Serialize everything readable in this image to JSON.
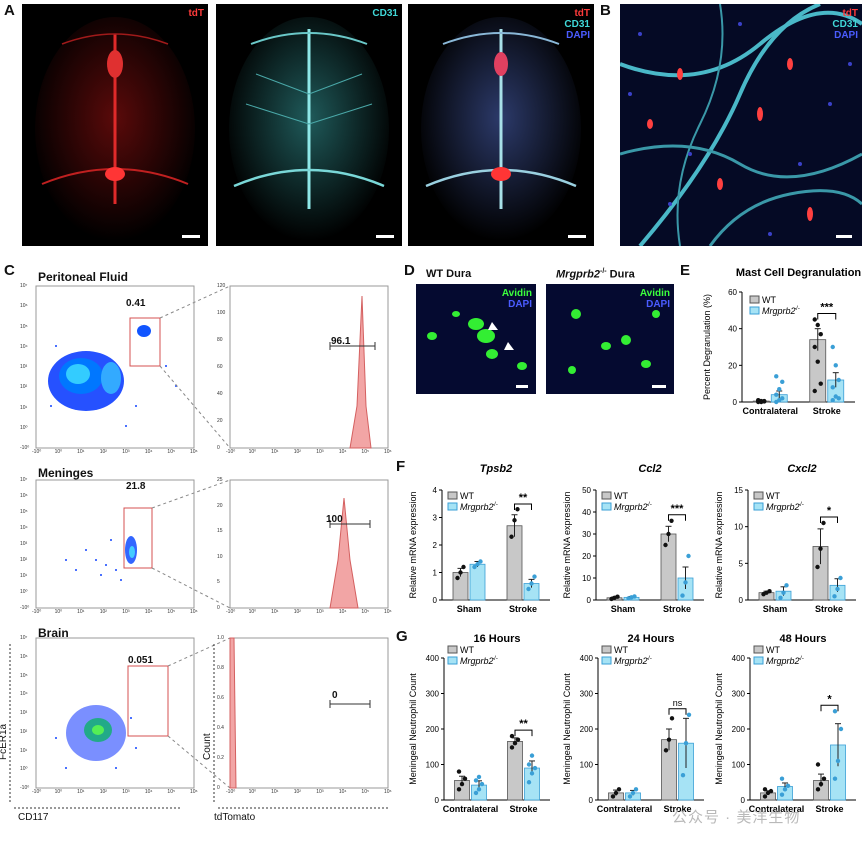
{
  "panels": {
    "a": "A",
    "b": "B",
    "c": "C",
    "d": "D",
    "e": "E",
    "f": "F",
    "g": "G"
  },
  "colors": {
    "tdt": "#ff3b3b",
    "cd31": "#40d8d8",
    "dapi": "#4a5cff",
    "avidin": "#3cff3c",
    "wt_bar": "#c8c8c8",
    "ko_bar": "#a6e3f5",
    "ko_point": "#3a9fd6",
    "hist": "#f2a5a5"
  },
  "panel_a": {
    "img1": [
      "tdT"
    ],
    "img2": [
      "CD31"
    ],
    "img3": [
      "tdT",
      "CD31",
      "DAPI"
    ]
  },
  "panel_b": {
    "labels": [
      "tdT",
      "CD31",
      "DAPI"
    ]
  },
  "panel_c": {
    "rows": [
      {
        "title": "Peritoneal Fluid",
        "gate": "0.41",
        "hist_value": "96.1"
      },
      {
        "title": "Meninges",
        "gate": "21.8",
        "hist_value": "100"
      },
      {
        "title": "Brain",
        "gate": "0.051",
        "hist_value": "0"
      }
    ],
    "scatter_yticks": [
      "10⁷",
      "10⁶",
      "10⁵",
      "10⁴",
      "10³",
      "10²",
      "10¹",
      "10⁰",
      "-10⁰"
    ],
    "scatter_xticks": [
      "-10⁰",
      "10⁰",
      "10¹",
      "10²",
      "10³",
      "10⁴",
      "10⁵",
      "10⁶"
    ],
    "hist_yticks_1": [
      "120",
      "100",
      "80",
      "60",
      "40",
      "20",
      "0"
    ],
    "hist_yticks_2": [
      "25",
      "20",
      "15",
      "10",
      "5",
      "0"
    ],
    "hist_yticks_3": [
      "1.0",
      "0.8",
      "0.6",
      "0.4",
      "0.2",
      "0"
    ],
    "hist_xticks": [
      "-10⁰",
      "10⁰",
      "10¹",
      "10²",
      "10³",
      "10⁴",
      "10⁵",
      "10⁶"
    ],
    "y_axis_label": "FcER1a",
    "x_axis_label": "CD117",
    "hist_y_label": "Count",
    "hist_x_label": "tdTomato"
  },
  "panel_d": {
    "wt_title": "WT Dura",
    "ko_title_gene": "Mrgprb2",
    "ko_title_sup": "-/-",
    "ko_title_suffix": " Dura",
    "labels": [
      "Avidin",
      "DAPI"
    ]
  },
  "legend": {
    "wt": "WT",
    "ko_gene": "Mrgprb2",
    "ko_sup": "-/-"
  },
  "chart_data": [
    {
      "id": "E",
      "type": "bar",
      "title": "Mast Cell Degranulation",
      "ylabel": "Percent Degranulation (%)",
      "ylim": [
        0,
        60
      ],
      "yticks": [
        0,
        20,
        40,
        60
      ],
      "categories": [
        "Contralateral",
        "Stroke"
      ],
      "series": [
        {
          "name": "WT",
          "values": [
            0.5,
            34
          ],
          "err": [
            0.3,
            6
          ],
          "points": [
            [
              0,
              0,
              0.5,
              1,
              0.5,
              0.3,
              0.8
            ],
            [
              45,
              42,
              37,
              30,
              22,
              10,
              6
            ]
          ]
        },
        {
          "name": "Mrgprb2-/-",
          "values": [
            4,
            12
          ],
          "err": [
            2,
            4
          ],
          "points": [
            [
              0,
              1,
              2,
              4,
              7,
              11,
              14
            ],
            [
              30,
              20,
              12,
              8,
              3,
              2,
              1
            ]
          ]
        }
      ],
      "sig": [
        {
          "cat": 1,
          "text": "***"
        }
      ]
    },
    {
      "id": "F1",
      "type": "bar",
      "title": "Tpsb2",
      "title_italic": true,
      "ylabel": "Relative mRNA expression",
      "ylim": [
        0,
        4
      ],
      "yticks": [
        0,
        1,
        2,
        3,
        4
      ],
      "categories": [
        "Sham",
        "Stroke"
      ],
      "series": [
        {
          "name": "WT",
          "values": [
            1.0,
            2.7
          ],
          "err": [
            0.15,
            0.4
          ],
          "points": [
            [
              0.8,
              1.0,
              1.2
            ],
            [
              2.3,
              2.9,
              3.3
            ]
          ]
        },
        {
          "name": "Mrgprb2-/-",
          "values": [
            1.3,
            0.6
          ],
          "err": [
            0.1,
            0.15
          ],
          "points": [
            [
              1.2,
              1.3,
              1.4
            ],
            [
              0.4,
              0.6,
              0.85
            ]
          ]
        }
      ],
      "sig": [
        {
          "cat": 1,
          "text": "**"
        }
      ]
    },
    {
      "id": "F2",
      "type": "bar",
      "title": "Ccl2",
      "title_italic": true,
      "ylabel": "Relative mRNA expression",
      "ylim": [
        0,
        50
      ],
      "yticks": [
        0,
        10,
        20,
        30,
        40,
        50
      ],
      "categories": [
        "Sham",
        "Stroke"
      ],
      "series": [
        {
          "name": "WT",
          "values": [
            1,
            30
          ],
          "err": [
            0.4,
            3.5
          ],
          "points": [
            [
              0.5,
              1,
              1.5
            ],
            [
              25,
              30,
              36
            ]
          ]
        },
        {
          "name": "Mrgprb2-/-",
          "values": [
            1.2,
            10
          ],
          "err": [
            0.4,
            5
          ],
          "points": [
            [
              0.7,
              1.2,
              1.6
            ],
            [
              2,
              8,
              20
            ]
          ]
        }
      ],
      "sig": [
        {
          "cat": 1,
          "text": "***"
        }
      ]
    },
    {
      "id": "F3",
      "type": "bar",
      "title": "Cxcl2",
      "title_italic": true,
      "ylabel": "Relative mRNA expression",
      "ylim": [
        0,
        15
      ],
      "yticks": [
        0,
        5,
        10,
        15
      ],
      "categories": [
        "Sham",
        "Stroke"
      ],
      "series": [
        {
          "name": "WT",
          "values": [
            1,
            7.3
          ],
          "err": [
            0.2,
            2.4
          ],
          "points": [
            [
              0.8,
              1,
              1.2
            ],
            [
              4.5,
              7,
              10.5
            ]
          ]
        },
        {
          "name": "Mrgprb2-/-",
          "values": [
            1.2,
            2
          ],
          "err": [
            0.6,
            0.9
          ],
          "points": [
            [
              0.3,
              1,
              2
            ],
            [
              0.5,
              1.5,
              3
            ]
          ]
        }
      ],
      "sig": [
        {
          "cat": 1,
          "text": "*"
        }
      ]
    },
    {
      "id": "G1",
      "type": "bar",
      "title": "16 Hours",
      "ylabel": "Meningeal Neutrophil Count",
      "ylim": [
        0,
        400
      ],
      "yticks": [
        0,
        100,
        200,
        300,
        400
      ],
      "categories": [
        "Contralateral",
        "Stroke"
      ],
      "series": [
        {
          "name": "WT",
          "values": [
            55,
            165
          ],
          "err": [
            12,
            10
          ],
          "points": [
            [
              30,
              45,
              60,
              80
            ],
            [
              148,
              160,
              170,
              180
            ]
          ]
        },
        {
          "name": "Mrgprb2-/-",
          "values": [
            42,
            90
          ],
          "err": [
            12,
            20
          ],
          "points": [
            [
              20,
              30,
              45,
              55,
              65
            ],
            [
              50,
              75,
              90,
              100,
              125
            ]
          ]
        }
      ],
      "sig": [
        {
          "cat": 1,
          "text": "**"
        }
      ]
    },
    {
      "id": "G2",
      "type": "bar",
      "title": "24 Hours",
      "ylabel": "Meningeal Neutrophil Count",
      "ylim": [
        0,
        400
      ],
      "yticks": [
        0,
        100,
        200,
        300,
        400
      ],
      "categories": [
        "Contralateral",
        "Stroke"
      ],
      "series": [
        {
          "name": "WT",
          "values": [
            20,
            170
          ],
          "err": [
            8,
            30
          ],
          "points": [
            [
              10,
              20,
              30
            ],
            [
              140,
              170,
              230
            ]
          ]
        },
        {
          "name": "Mrgprb2-/-",
          "values": [
            20,
            160
          ],
          "err": [
            7,
            70
          ],
          "points": [
            [
              10,
              20,
              30
            ],
            [
              70,
              160,
              240
            ]
          ]
        }
      ],
      "sig": [
        {
          "cat": 1,
          "text": "ns"
        }
      ]
    },
    {
      "id": "G3",
      "type": "bar",
      "title": "48 Hours",
      "ylabel": "Meningeal Neutrophil Count",
      "ylim": [
        0,
        400
      ],
      "yticks": [
        0,
        100,
        200,
        300,
        400
      ],
      "categories": [
        "Contralateral",
        "Stroke"
      ],
      "series": [
        {
          "name": "WT",
          "values": [
            20,
            55
          ],
          "err": [
            6,
            18
          ],
          "points": [
            [
              10,
              20,
              25,
              30
            ],
            [
              30,
              45,
              60,
              100
            ]
          ]
        },
        {
          "name": "Mrgprb2-/-",
          "values": [
            38,
            155
          ],
          "err": [
            10,
            60
          ],
          "points": [
            [
              15,
              30,
              40,
              60
            ],
            [
              60,
              110,
              200,
              250
            ]
          ]
        }
      ],
      "sig": [
        {
          "cat": 1,
          "text": "*"
        }
      ]
    }
  ],
  "watermark": "公众号 · 美洋生物"
}
